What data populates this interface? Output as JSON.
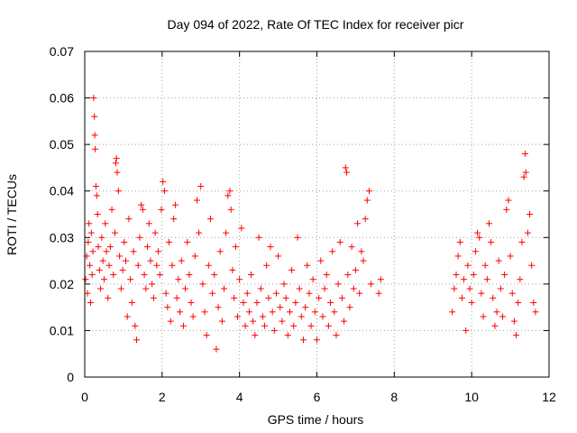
{
  "chart_data": {
    "type": "scatter",
    "title": "Day 094 of 2022, Rate Of TEC Index for receiver picr",
    "xlabel": "GPS time / hours",
    "ylabel": "ROTI / TECUs",
    "xlim": [
      0,
      12
    ],
    "ylim": [
      0,
      0.07
    ],
    "x_ticks": [
      0,
      2,
      4,
      6,
      8,
      10,
      12
    ],
    "x_tick_labels": [
      "0",
      "2",
      "4",
      "6",
      "8",
      "10",
      "12"
    ],
    "y_ticks": [
      0,
      0.01,
      0.02,
      0.03,
      0.04,
      0.05,
      0.06,
      0.07
    ],
    "y_tick_labels": [
      "0",
      "0.01",
      "0.02",
      "0.03",
      "0.04",
      "0.05",
      "0.06",
      "0.07"
    ],
    "grid": true,
    "marker": "+",
    "series": [
      {
        "name": "ROTI",
        "color": "#ff0000",
        "points": [
          [
            0.02,
            0.021
          ],
          [
            0.05,
            0.026
          ],
          [
            0.07,
            0.018
          ],
          [
            0.09,
            0.029
          ],
          [
            0.11,
            0.033
          ],
          [
            0.13,
            0.024
          ],
          [
            0.15,
            0.016
          ],
          [
            0.17,
            0.031
          ],
          [
            0.19,
            0.022
          ],
          [
            0.21,
            0.027
          ],
          [
            0.23,
            0.06
          ],
          [
            0.25,
            0.056
          ],
          [
            0.26,
            0.052
          ],
          [
            0.27,
            0.049
          ],
          [
            0.29,
            0.041
          ],
          [
            0.31,
            0.039
          ],
          [
            0.33,
            0.035
          ],
          [
            0.35,
            0.028
          ],
          [
            0.38,
            0.023
          ],
          [
            0.41,
            0.019
          ],
          [
            0.44,
            0.03
          ],
          [
            0.47,
            0.025
          ],
          [
            0.5,
            0.021
          ],
          [
            0.53,
            0.033
          ],
          [
            0.56,
            0.027
          ],
          [
            0.6,
            0.017
          ],
          [
            0.63,
            0.024
          ],
          [
            0.66,
            0.028
          ],
          [
            0.7,
            0.036
          ],
          [
            0.74,
            0.022
          ],
          [
            0.78,
            0.031
          ],
          [
            0.8,
            0.046
          ],
          [
            0.82,
            0.047
          ],
          [
            0.84,
            0.044
          ],
          [
            0.87,
            0.04
          ],
          [
            0.9,
            0.026
          ],
          [
            0.94,
            0.019
          ],
          [
            0.98,
            0.023
          ],
          [
            1.02,
            0.029
          ],
          [
            1.06,
            0.025
          ],
          [
            1.1,
            0.013
          ],
          [
            1.14,
            0.034
          ],
          [
            1.18,
            0.021
          ],
          [
            1.22,
            0.016
          ],
          [
            1.26,
            0.027
          ],
          [
            1.3,
            0.011
          ],
          [
            1.34,
            0.008
          ],
          [
            1.38,
            0.024
          ],
          [
            1.42,
            0.03
          ],
          [
            1.46,
            0.037
          ],
          [
            1.5,
            0.036
          ],
          [
            1.54,
            0.022
          ],
          [
            1.58,
            0.019
          ],
          [
            1.62,
            0.028
          ],
          [
            1.66,
            0.033
          ],
          [
            1.7,
            0.025
          ],
          [
            1.74,
            0.02
          ],
          [
            1.78,
            0.017
          ],
          [
            1.82,
            0.031
          ],
          [
            1.86,
            0.024
          ],
          [
            1.9,
            0.027
          ],
          [
            1.94,
            0.022
          ],
          [
            1.98,
            0.036
          ],
          [
            2.02,
            0.042
          ],
          [
            2.06,
            0.04
          ],
          [
            2.1,
            0.018
          ],
          [
            2.14,
            0.015
          ],
          [
            2.18,
            0.029
          ],
          [
            2.22,
            0.012
          ],
          [
            2.26,
            0.024
          ],
          [
            2.3,
            0.034
          ],
          [
            2.34,
            0.037
          ],
          [
            2.38,
            0.017
          ],
          [
            2.42,
            0.021
          ],
          [
            2.46,
            0.014
          ],
          [
            2.5,
            0.025
          ],
          [
            2.55,
            0.011
          ],
          [
            2.6,
            0.019
          ],
          [
            2.65,
            0.029
          ],
          [
            2.7,
            0.022
          ],
          [
            2.75,
            0.016
          ],
          [
            2.8,
            0.013
          ],
          [
            2.85,
            0.026
          ],
          [
            2.9,
            0.038
          ],
          [
            2.95,
            0.031
          ],
          [
            3.0,
            0.041
          ],
          [
            3.05,
            0.02
          ],
          [
            3.1,
            0.014
          ],
          [
            3.15,
            0.009
          ],
          [
            3.2,
            0.024
          ],
          [
            3.25,
            0.034
          ],
          [
            3.3,
            0.018
          ],
          [
            3.35,
            0.022
          ],
          [
            3.4,
            0.006
          ],
          [
            3.45,
            0.015
          ],
          [
            3.5,
            0.027
          ],
          [
            3.55,
            0.012
          ],
          [
            3.6,
            0.019
          ],
          [
            3.65,
            0.031
          ],
          [
            3.7,
            0.039
          ],
          [
            3.75,
            0.04
          ],
          [
            3.78,
            0.036
          ],
          [
            3.82,
            0.023
          ],
          [
            3.86,
            0.017
          ],
          [
            3.9,
            0.028
          ],
          [
            3.95,
            0.013
          ],
          [
            4.0,
            0.021
          ],
          [
            4.05,
            0.032
          ],
          [
            4.1,
            0.016
          ],
          [
            4.15,
            0.011
          ],
          [
            4.2,
            0.018
          ],
          [
            4.25,
            0.014
          ],
          [
            4.3,
            0.022
          ],
          [
            4.35,
            0.012
          ],
          [
            4.4,
            0.009
          ],
          [
            4.45,
            0.016
          ],
          [
            4.5,
            0.03
          ],
          [
            4.55,
            0.019
          ],
          [
            4.6,
            0.013
          ],
          [
            4.65,
            0.011
          ],
          [
            4.7,
            0.024
          ],
          [
            4.75,
            0.017
          ],
          [
            4.8,
            0.028
          ],
          [
            4.85,
            0.014
          ],
          [
            4.9,
            0.01
          ],
          [
            4.95,
            0.018
          ],
          [
            5.0,
            0.026
          ],
          [
            5.05,
            0.015
          ],
          [
            5.1,
            0.012
          ],
          [
            5.15,
            0.02
          ],
          [
            5.2,
            0.017
          ],
          [
            5.25,
            0.009
          ],
          [
            5.3,
            0.014
          ],
          [
            5.35,
            0.023
          ],
          [
            5.4,
            0.011
          ],
          [
            5.45,
            0.016
          ],
          [
            5.5,
            0.03
          ],
          [
            5.55,
            0.019
          ],
          [
            5.6,
            0.013
          ],
          [
            5.65,
            0.008
          ],
          [
            5.7,
            0.015
          ],
          [
            5.75,
            0.024
          ],
          [
            5.8,
            0.018
          ],
          [
            5.85,
            0.011
          ],
          [
            5.9,
            0.021
          ],
          [
            5.95,
            0.014
          ],
          [
            6.0,
            0.008
          ],
          [
            6.05,
            0.017
          ],
          [
            6.1,
            0.025
          ],
          [
            6.15,
            0.013
          ],
          [
            6.2,
            0.019
          ],
          [
            6.25,
            0.022
          ],
          [
            6.3,
            0.011
          ],
          [
            6.35,
            0.016
          ],
          [
            6.4,
            0.027
          ],
          [
            6.45,
            0.014
          ],
          [
            6.5,
            0.009
          ],
          [
            6.55,
            0.02
          ],
          [
            6.6,
            0.029
          ],
          [
            6.65,
            0.017
          ],
          [
            6.7,
            0.012
          ],
          [
            6.74,
            0.045
          ],
          [
            6.77,
            0.044
          ],
          [
            6.8,
            0.022
          ],
          [
            6.85,
            0.015
          ],
          [
            6.9,
            0.028
          ],
          [
            6.95,
            0.019
          ],
          [
            7.0,
            0.023
          ],
          [
            7.05,
            0.033
          ],
          [
            7.1,
            0.018
          ],
          [
            7.15,
            0.027
          ],
          [
            7.2,
            0.025
          ],
          [
            7.25,
            0.034
          ],
          [
            7.3,
            0.038
          ],
          [
            7.35,
            0.04
          ],
          [
            7.4,
            0.02
          ],
          [
            7.6,
            0.018
          ],
          [
            7.65,
            0.021
          ],
          [
            9.5,
            0.014
          ],
          [
            9.55,
            0.019
          ],
          [
            9.6,
            0.022
          ],
          [
            9.65,
            0.026
          ],
          [
            9.7,
            0.029
          ],
          [
            9.75,
            0.017
          ],
          [
            9.8,
            0.021
          ],
          [
            9.85,
            0.01
          ],
          [
            9.9,
            0.024
          ],
          [
            9.95,
            0.019
          ],
          [
            10.0,
            0.016
          ],
          [
            10.05,
            0.022
          ],
          [
            10.1,
            0.027
          ],
          [
            10.15,
            0.031
          ],
          [
            10.2,
            0.03
          ],
          [
            10.25,
            0.018
          ],
          [
            10.3,
            0.013
          ],
          [
            10.35,
            0.024
          ],
          [
            10.4,
            0.021
          ],
          [
            10.45,
            0.033
          ],
          [
            10.5,
            0.029
          ],
          [
            10.55,
            0.017
          ],
          [
            10.6,
            0.011
          ],
          [
            10.65,
            0.014
          ],
          [
            10.7,
            0.025
          ],
          [
            10.75,
            0.019
          ],
          [
            10.8,
            0.013
          ],
          [
            10.85,
            0.022
          ],
          [
            10.9,
            0.036
          ],
          [
            10.95,
            0.038
          ],
          [
            11.0,
            0.026
          ],
          [
            11.05,
            0.018
          ],
          [
            11.1,
            0.012
          ],
          [
            11.15,
            0.009
          ],
          [
            11.2,
            0.016
          ],
          [
            11.25,
            0.021
          ],
          [
            11.3,
            0.029
          ],
          [
            11.35,
            0.043
          ],
          [
            11.38,
            0.048
          ],
          [
            11.4,
            0.044
          ],
          [
            11.45,
            0.031
          ],
          [
            11.5,
            0.035
          ],
          [
            11.55,
            0.024
          ],
          [
            11.6,
            0.016
          ],
          [
            11.65,
            0.014
          ]
        ]
      }
    ]
  }
}
